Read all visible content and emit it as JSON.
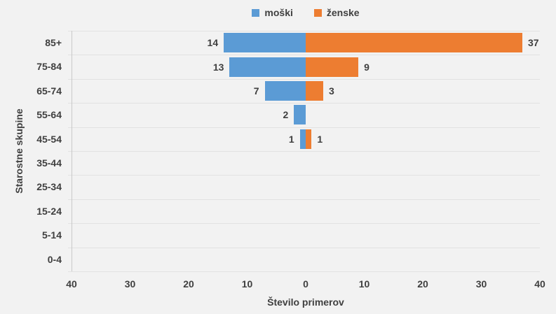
{
  "chart_data": {
    "type": "bar",
    "variant": "diverging-horizontal",
    "title": "",
    "categories": [
      "85+",
      "75-84",
      "65-74",
      "55-64",
      "45-54",
      "35-44",
      "25-34",
      "15-24",
      "5-14",
      "0-4"
    ],
    "series": [
      {
        "name": "moški",
        "side": "left",
        "color": "#5B9BD5",
        "values": [
          14,
          13,
          7,
          2,
          1,
          0,
          0,
          0,
          0,
          0
        ]
      },
      {
        "name": "ženske",
        "side": "right",
        "color": "#ED7D31",
        "values": [
          37,
          9,
          3,
          0,
          1,
          0,
          0,
          0,
          0,
          0
        ]
      }
    ],
    "xlabel": "Število primerov",
    "ylabel": "Starostne skupine",
    "x_ticks": [
      "40",
      "30",
      "20",
      "10",
      "0",
      "10",
      "20",
      "30",
      "40"
    ],
    "xlim": [
      -40,
      40
    ],
    "legend_position": "top-center",
    "grid": "horizontal-row-boundaries",
    "data_labels": "outside-end, hidden when 0",
    "colors": {
      "background": "#F2F2F2",
      "gridline": "#E2E2E2",
      "axis_line": "#C9C9C9",
      "text": "#3F3F3F"
    }
  }
}
